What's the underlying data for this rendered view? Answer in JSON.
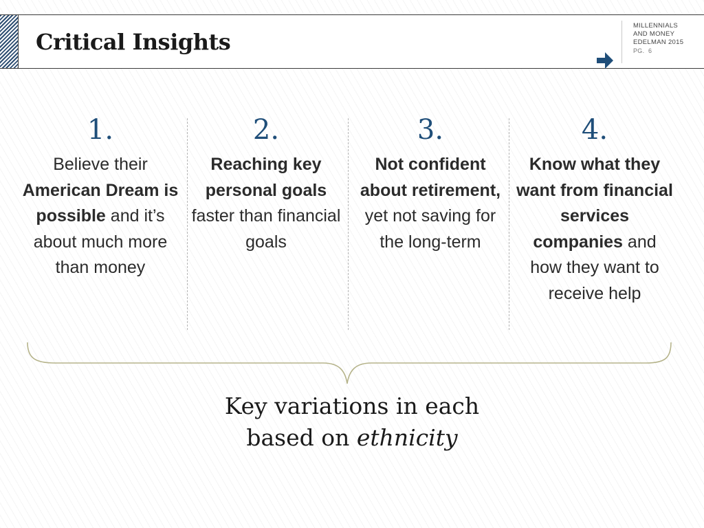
{
  "header": {
    "title": "Critical Insights",
    "brand_line1": "MILLENNIALS",
    "brand_line2": "AND MONEY",
    "brand_line3": "EDELMAN 2015",
    "page_label": "PG.",
    "page_number": "6"
  },
  "insights": [
    {
      "number": "1.",
      "parts": [
        {
          "text": "Believe their ",
          "bold": false
        },
        {
          "text": "American Dream is possible",
          "bold": true
        },
        {
          "text": " and it’s about much more than money",
          "bold": false
        }
      ]
    },
    {
      "number": "2.",
      "parts": [
        {
          "text": "Reaching key personal goals",
          "bold": true
        },
        {
          "text": " faster than financial goals",
          "bold": false
        }
      ]
    },
    {
      "number": "3.",
      "parts": [
        {
          "text": "Not confident about retirement,",
          "bold": true
        },
        {
          "text": " yet not saving for the long-term",
          "bold": false
        }
      ]
    },
    {
      "number": "4.",
      "parts": [
        {
          "text": "Know what they want from financial services companies",
          "bold": true
        },
        {
          "text": " and how they want to receive help",
          "bold": false
        }
      ]
    }
  ],
  "footer": {
    "line1": "Key variations in each",
    "line2_prefix": "based on ",
    "line2_emphasis": "ethnicity"
  },
  "colors": {
    "accent_blue": "#1f4e79",
    "brace_olive": "#b5b38a",
    "hatch_blue": "#2f4f73"
  }
}
